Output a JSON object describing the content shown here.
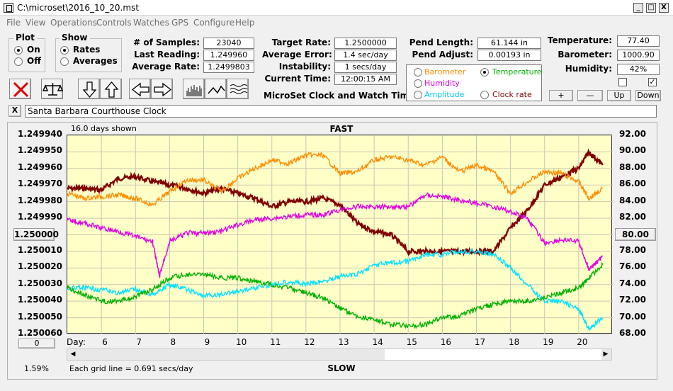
{
  "window": {
    "title": "C:\\microset\\2016_10_20.mst",
    "min_label": "_",
    "max_label": "□",
    "close_label": "X"
  },
  "menu": [
    "File",
    "View",
    "Operations",
    "Controls",
    "Watches",
    "GPS",
    "Configure",
    "Help"
  ],
  "plot_group": {
    "title": "Plot",
    "on": "On",
    "off": "Off",
    "selected": "On"
  },
  "show_group": {
    "title": "Show",
    "rates": "Rates",
    "averages": "Averages",
    "selected": "Rates"
  },
  "stats": {
    "samples_label": "# of Samples:",
    "samples": "23040",
    "last_reading_label": "Last Reading:",
    "last_reading": "1.249960",
    "average_rate_label": "Average Rate:",
    "average_rate": "1.2499803",
    "target_rate_label": "Target Rate:",
    "target_rate": "1.2500000",
    "average_error_label": "Average Error:",
    "average_error": "1.4 sec/day",
    "instability_label": "Instability:",
    "instability": "1 secs/day",
    "current_time_label": "Current Time:",
    "current_time": "12:00:15 AM",
    "pend_length_label": "Pend Length:",
    "pend_length": "61.144 in",
    "pend_adjust_label": "Pend Adjust:",
    "pend_adjust": "0.00193 in",
    "temperature_label": "Temperature:",
    "temperature": "77.40",
    "barometer_label": "Barometer:",
    "barometer": "1000.90",
    "humidity_label": "Humidity:",
    "humidity": "42%"
  },
  "app_caption": "MicroSet Clock and Watch Timer",
  "sensor_options": {
    "barometer": "Barometer",
    "temperature": "Temperature",
    "humidity": "Humidity",
    "amplitude": "Amplitude",
    "clock_rate": "Clock rate",
    "selected": "Temperature"
  },
  "adjust_buttons": {
    "plus": "+",
    "minus": "—",
    "up": "Up",
    "down": "Down"
  },
  "checkboxes": {
    "left_checked": false,
    "right_checked": true
  },
  "clock_name": "Santa Barbara Courthouse Clock",
  "clear_name_label": "X",
  "chart_header": {
    "days_shown": "16.0 days shown",
    "top": "FAST",
    "bottom": "SLOW",
    "day_label": "Day:"
  },
  "left_center_button": "1.250000",
  "right_center_button": "80.00",
  "bottom_left_button": "0",
  "percent": "1.59%",
  "grid_note": "Each grid line = 0.691 secs/day",
  "colors": {
    "rate": "#800000",
    "barometer": "#ff8c00",
    "temperature": "#00b000",
    "humidity": "#e000e0",
    "amplitude": "#00e0ff",
    "plot_bg": "#ffffc8"
  },
  "chart_data": {
    "type": "line",
    "x_axis": {
      "label": "Day:",
      "ticks": [
        6,
        7,
        8,
        9,
        10,
        11,
        12,
        13,
        14,
        15,
        16,
        17,
        18,
        19,
        20
      ],
      "range": [
        5.0,
        21.0
      ]
    },
    "y_left": {
      "ticks": [
        "1.249940",
        "1.249950",
        "1.249960",
        "1.249970",
        "1.249980",
        "1.249990",
        "1.250000",
        "1.250010",
        "1.250020",
        "1.250030",
        "1.250040",
        "1.250050",
        "1.250060"
      ],
      "range": [
        1.24994,
        1.25006
      ]
    },
    "y_right": {
      "ticks": [
        "92.00",
        "90.00",
        "88.00",
        "86.00",
        "84.00",
        "82.00",
        "80.00",
        "78.00",
        "76.00",
        "74.00",
        "72.00",
        "70.00",
        "68.00"
      ],
      "range": [
        68,
        92
      ]
    },
    "grid": true,
    "series": [
      {
        "key": "rate",
        "axis": "left",
        "x": [
          5,
          5.5,
          6,
          6.5,
          7,
          7.5,
          8,
          8.5,
          9,
          9.5,
          10,
          10.5,
          11,
          11.5,
          12,
          12.5,
          13,
          13.5,
          14,
          14.5,
          15,
          15.5,
          16,
          16.5,
          17,
          17.5,
          18,
          18.5,
          19,
          19.5,
          20,
          20.3,
          20.7
        ],
        "y": [
          1.249972,
          1.249972,
          1.249973,
          1.249966,
          1.249965,
          1.249968,
          1.24997,
          1.249972,
          1.249975,
          1.249972,
          1.249975,
          1.249978,
          1.249983,
          1.24998,
          1.24998,
          1.249978,
          1.249982,
          1.249993,
          1.249998,
          1.25,
          1.25001,
          1.25001,
          1.25001,
          1.25001,
          1.25001,
          1.25001,
          1.249996,
          1.249985,
          1.24997,
          1.249965,
          1.24996,
          1.24995,
          1.249958
        ]
      },
      {
        "key": "barometer",
        "axis": "left",
        "x": [
          5,
          5.5,
          6,
          6.5,
          7,
          7.5,
          8,
          8.5,
          9,
          9.5,
          10,
          10.5,
          11,
          11.5,
          12,
          12.5,
          13,
          13.5,
          14,
          14.5,
          15,
          15.5,
          16,
          16.5,
          17,
          17.5,
          18,
          18.5,
          19,
          19.5,
          20,
          20.3,
          20.7
        ],
        "y": [
          1.249975,
          1.249978,
          1.249977,
          1.249976,
          1.249978,
          1.249982,
          1.249974,
          1.249967,
          1.249967,
          1.249974,
          1.249966,
          1.24996,
          1.249955,
          1.249957,
          1.249952,
          1.249952,
          1.249963,
          1.249962,
          1.249955,
          1.249953,
          1.249955,
          1.249958,
          1.249953,
          1.249962,
          1.249958,
          1.249962,
          1.249975,
          1.249968,
          1.249962,
          1.249963,
          1.249968,
          1.249978,
          1.249972
        ]
      },
      {
        "key": "humidity",
        "axis": "left",
        "x": [
          5,
          5.5,
          6,
          6.5,
          7,
          7.5,
          7.7,
          8,
          8.5,
          9,
          9.5,
          10,
          10.5,
          11,
          11.5,
          12,
          12.5,
          13,
          13.5,
          14,
          14.5,
          15,
          15.5,
          16,
          16.5,
          17,
          17.5,
          18,
          18.5,
          19,
          19.5,
          20,
          20.3,
          20.7
        ],
        "y": [
          1.249991,
          1.249993,
          1.249996,
          1.249998,
          1.250001,
          1.250004,
          1.250025,
          1.250004,
          1.249999,
          1.249999,
          1.249998,
          1.249994,
          1.249991,
          1.24999,
          1.249989,
          1.249988,
          1.249988,
          1.249985,
          1.249983,
          1.249983,
          1.249983,
          1.249983,
          1.249976,
          1.249977,
          1.249979,
          1.249981,
          1.249983,
          1.249986,
          1.24999,
          1.250005,
          1.250003,
          1.250004,
          1.250021,
          1.250013
        ]
      },
      {
        "key": "amplitude",
        "axis": "left",
        "x": [
          5,
          5.5,
          6,
          6.5,
          7,
          7.5,
          8,
          8.5,
          9,
          9.5,
          10,
          10.5,
          11,
          11.5,
          12,
          12.5,
          13,
          13.5,
          14,
          14.5,
          15,
          15.5,
          16,
          16.5,
          17,
          17.5,
          18,
          18.5,
          19,
          19.5,
          20,
          20.3,
          20.7
        ],
        "y": [
          1.250032,
          1.250032,
          1.250033,
          1.250035,
          1.250033,
          1.250036,
          1.25003,
          1.250033,
          1.250037,
          1.250036,
          1.250034,
          1.250032,
          1.25003,
          1.250028,
          1.25003,
          1.250028,
          1.250025,
          1.250024,
          1.250018,
          1.250017,
          1.250016,
          1.250012,
          1.250012,
          1.25001,
          1.25001,
          1.250012,
          1.25002,
          1.25003,
          1.25004,
          1.25004,
          1.250045,
          1.250057,
          1.25005
        ]
      },
      {
        "key": "temperature",
        "axis": "left",
        "x": [
          5,
          5.5,
          6,
          6.5,
          7,
          7.5,
          8,
          8.5,
          9,
          9.5,
          10,
          10.5,
          11,
          11.5,
          12,
          12.5,
          13,
          13.5,
          14,
          14.5,
          15,
          15.5,
          16,
          16.5,
          17,
          17.5,
          18,
          18.5,
          19,
          19.5,
          20,
          20.3,
          20.7
        ],
        "y": [
          1.250032,
          1.250036,
          1.25004,
          1.25004,
          1.250037,
          1.250033,
          1.250026,
          1.250024,
          1.250024,
          1.250026,
          1.250026,
          1.250028,
          1.25003,
          1.250032,
          1.250035,
          1.250038,
          1.250044,
          1.250049,
          1.250051,
          1.250054,
          1.250055,
          1.250054,
          1.25005,
          1.250049,
          1.250045,
          1.250042,
          1.25004,
          1.25004,
          1.250038,
          1.250035,
          1.250032,
          1.250026,
          1.250018
        ]
      }
    ]
  }
}
